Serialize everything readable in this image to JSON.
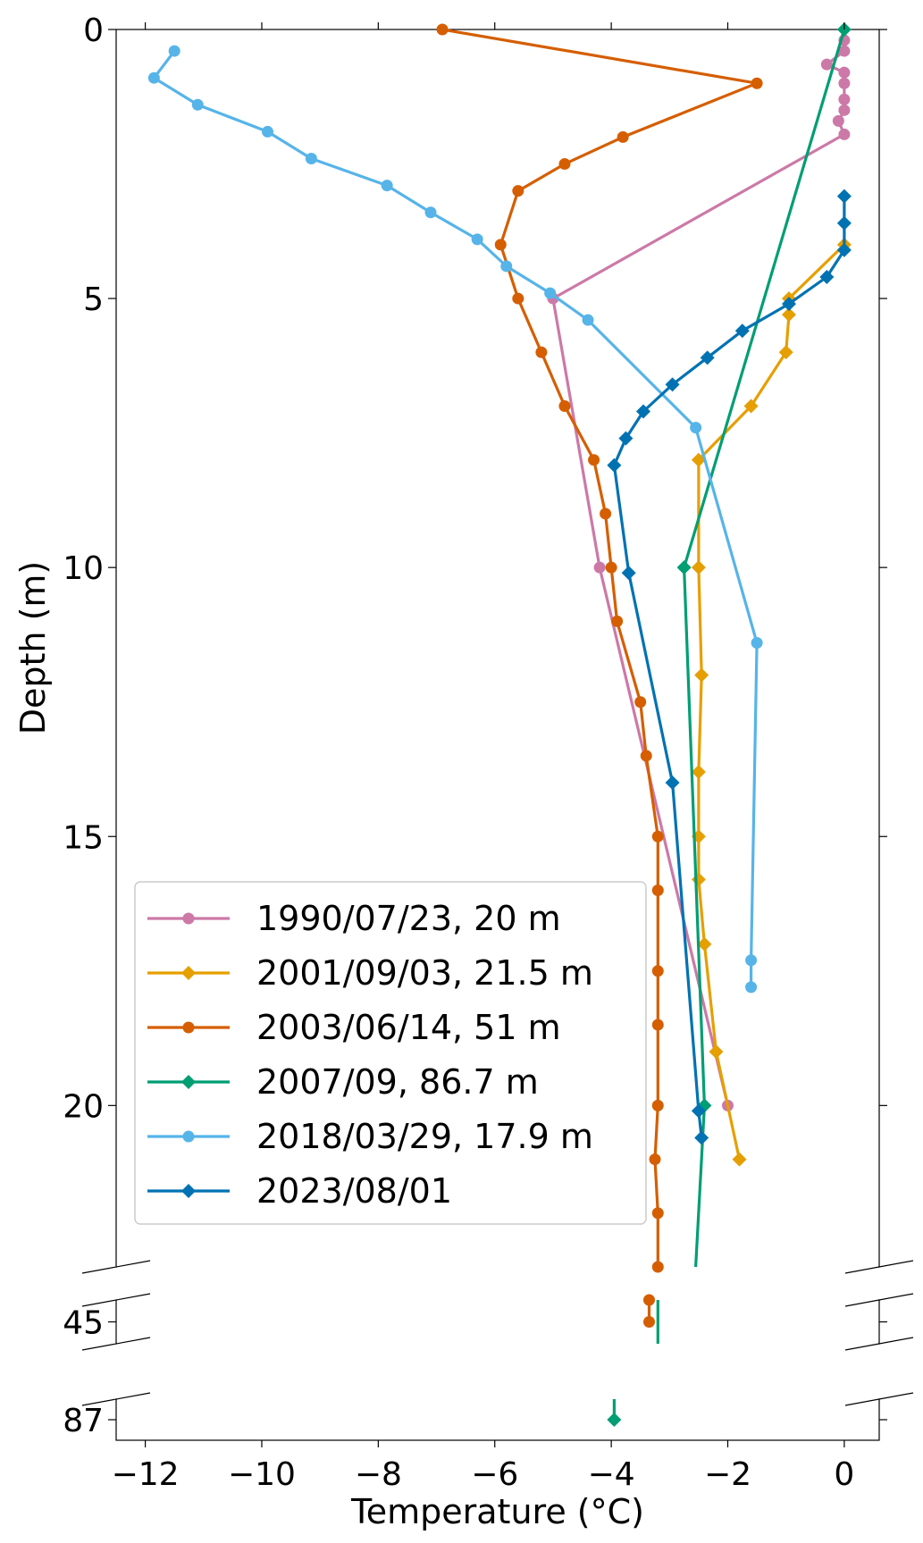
{
  "chart_data": {
    "type": "line",
    "xlabel": "Temperature (°C)",
    "ylabel": "Depth (m)",
    "xlim": [
      -12.5,
      0.6
    ],
    "y_axis_inverted": true,
    "y_axis_broken": true,
    "y_segments": [
      {
        "range": [
          0,
          23
        ]
      },
      {
        "range": [
          44.6,
          45.4
        ]
      },
      {
        "range": [
          86.6,
          87.4
        ]
      }
    ],
    "x_ticks": [
      {
        "value": -12,
        "label": "−12"
      },
      {
        "value": -10,
        "label": "−10"
      },
      {
        "value": -8,
        "label": "−8"
      },
      {
        "value": -6,
        "label": "−6"
      },
      {
        "value": -4,
        "label": "−4"
      },
      {
        "value": -2,
        "label": "−2"
      },
      {
        "value": 0,
        "label": "0"
      }
    ],
    "y_ticks": [
      {
        "value": 0,
        "label": "0"
      },
      {
        "value": 5,
        "label": "5"
      },
      {
        "value": 10,
        "label": "10"
      },
      {
        "value": 15,
        "label": "15"
      },
      {
        "value": 20,
        "label": "20"
      },
      {
        "value": 45,
        "label": "45"
      },
      {
        "value": 87,
        "label": "87"
      }
    ],
    "legend_position": "lower-left",
    "grid": false,
    "series": [
      {
        "name": "1990/07/23, 20 m",
        "color": "#CC79A7",
        "marker": "circle",
        "points": [
          [
            0.0,
            0.2
          ],
          [
            0.0,
            0.4
          ],
          [
            -0.3,
            0.65
          ],
          [
            0.0,
            0.8
          ],
          [
            0.0,
            1.0
          ],
          [
            0.0,
            1.3
          ],
          [
            0.0,
            1.5
          ],
          [
            -0.1,
            1.7
          ],
          [
            0.0,
            1.95
          ],
          [
            -5.0,
            5.0
          ],
          [
            -4.2,
            10.0
          ],
          [
            -2.0,
            20.0
          ]
        ]
      },
      {
        "name": "2001/09/03, 21.5 m",
        "color": "#E69F00",
        "marker": "diamond",
        "points": [
          [
            0.0,
            4.0
          ],
          [
            -0.95,
            5.0
          ],
          [
            -0.95,
            5.3
          ],
          [
            -1.0,
            6.0
          ],
          [
            -1.6,
            7.0
          ],
          [
            -2.5,
            8.0
          ],
          [
            -2.5,
            10.0
          ],
          [
            -2.45,
            12.0
          ],
          [
            -2.5,
            13.8
          ],
          [
            -2.5,
            15.0
          ],
          [
            -2.5,
            15.8
          ],
          [
            -2.4,
            17.0
          ],
          [
            -2.2,
            19.0
          ],
          [
            -1.8,
            21.0
          ]
        ]
      },
      {
        "name": "2003/06/14, 51 m",
        "color": "#D55E00",
        "marker": "circle",
        "points": [
          [
            -6.9,
            0.0
          ],
          [
            -1.5,
            1.0
          ],
          [
            -3.8,
            2.0
          ],
          [
            -4.8,
            2.5
          ],
          [
            -5.6,
            3.0
          ],
          [
            -5.9,
            4.0
          ],
          [
            -5.6,
            5.0
          ],
          [
            -5.2,
            6.0
          ],
          [
            -4.8,
            7.0
          ],
          [
            -4.3,
            8.0
          ],
          [
            -4.1,
            9.0
          ],
          [
            -4.0,
            10.0
          ],
          [
            -3.9,
            11.0
          ],
          [
            -3.5,
            12.5
          ],
          [
            -3.4,
            13.5
          ],
          [
            -3.2,
            15.0
          ],
          [
            -3.2,
            16.0
          ],
          [
            -3.2,
            17.5
          ],
          [
            -3.2,
            18.5
          ],
          [
            -3.2,
            20.0
          ],
          [
            -3.25,
            21.0
          ],
          [
            -3.2,
            22.0
          ],
          [
            -3.2,
            23.0
          ],
          [
            -3.35,
            44.6
          ],
          [
            -3.35,
            45.0
          ]
        ]
      },
      {
        "name": "2007/09, 86.7 m",
        "color": "#009E73",
        "marker": "diamond",
        "points": [
          [
            0.0,
            0.0
          ],
          [
            -2.75,
            10.0
          ],
          [
            -2.4,
            20.0
          ],
          [
            -2.55,
            23.0
          ],
          [
            -3.2,
            44.6
          ],
          [
            -3.2,
            45.4
          ],
          [
            -3.95,
            86.6
          ],
          [
            -3.95,
            87.0
          ]
        ],
        "marker_indices": [
          0,
          1,
          2,
          7
        ]
      },
      {
        "name": "2018/03/29, 17.9 m",
        "color": "#56B4E9",
        "marker": "circle",
        "points": [
          [
            -11.5,
            0.4
          ],
          [
            -11.85,
            0.9
          ],
          [
            -11.1,
            1.4
          ],
          [
            -9.9,
            1.9
          ],
          [
            -9.15,
            2.4
          ],
          [
            -7.85,
            2.9
          ],
          [
            -7.1,
            3.4
          ],
          [
            -6.3,
            3.9
          ],
          [
            -5.8,
            4.4
          ],
          [
            -5.05,
            4.9
          ],
          [
            -4.4,
            5.4
          ],
          [
            -2.55,
            7.4
          ],
          [
            -1.5,
            11.4
          ],
          [
            -1.6,
            17.3
          ],
          [
            -1.6,
            17.8
          ]
        ]
      },
      {
        "name": "2023/08/01",
        "color": "#0072B2",
        "marker": "diamond",
        "points": [
          [
            0.0,
            3.1
          ],
          [
            0.0,
            3.6
          ],
          [
            0.0,
            4.1
          ],
          [
            -0.3,
            4.6
          ],
          [
            -0.95,
            5.1
          ],
          [
            -1.75,
            5.6
          ],
          [
            -2.35,
            6.1
          ],
          [
            -2.95,
            6.6
          ],
          [
            -3.45,
            7.1
          ],
          [
            -3.75,
            7.6
          ],
          [
            -3.95,
            8.1
          ],
          [
            -3.7,
            10.1
          ],
          [
            -2.95,
            14.0
          ],
          [
            -2.5,
            20.1
          ],
          [
            -2.45,
            20.6
          ]
        ]
      }
    ]
  }
}
